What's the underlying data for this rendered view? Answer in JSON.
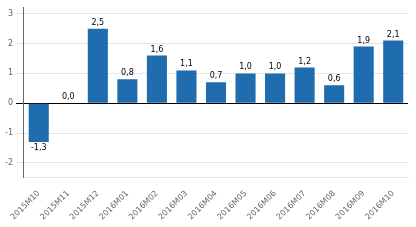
{
  "chart_data": {
    "type": "bar",
    "categories": [
      "2015M10",
      "2015M11",
      "2015M12",
      "2016M01",
      "2016M02",
      "2016M03",
      "2016M04",
      "2016M05",
      "2016M06",
      "2016M07",
      "2016M08",
      "2016M09",
      "2016M10"
    ],
    "values": [
      -1.3,
      0.0,
      2.5,
      0.8,
      1.6,
      1.1,
      0.7,
      1.0,
      1.0,
      1.2,
      0.6,
      1.9,
      2.1
    ],
    "value_labels": [
      "-1,3",
      "0,0",
      "2,5",
      "0,8",
      "1,6",
      "1,1",
      "0,7",
      "1,0",
      "1,0",
      "1,2",
      "0,6",
      "1,9",
      "2,1"
    ],
    "data_labels": true,
    "color": "#1F6DAE",
    "ylim": [
      -2.5,
      3.2
    ],
    "yticks": [
      -2,
      -1,
      0,
      1,
      2,
      3
    ],
    "grid": true
  }
}
